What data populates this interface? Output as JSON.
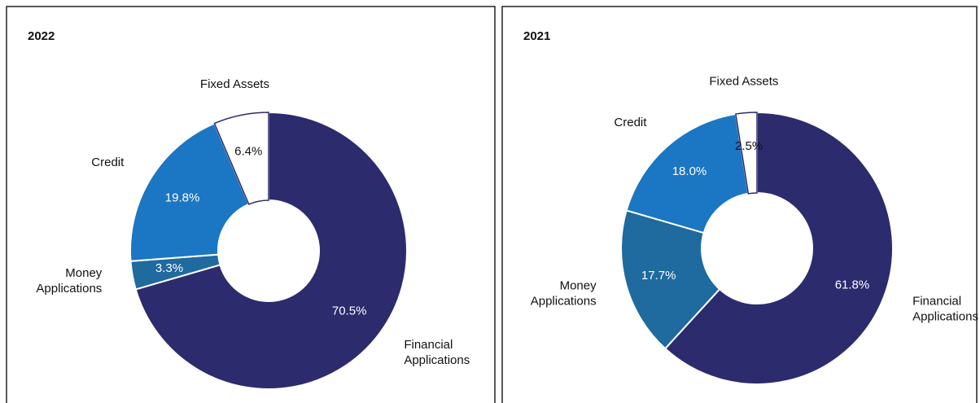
{
  "chart_data": [
    {
      "type": "pie",
      "title": "2022",
      "categories": [
        "Financial Applications",
        "Money Applications",
        "Credit",
        "Fixed Assets"
      ],
      "values": [
        70.5,
        3.3,
        19.8,
        6.4
      ],
      "value_labels": [
        "70.5%",
        "3.3%",
        "19.8%",
        "6.4%"
      ],
      "colors": [
        "#2c2b6e",
        "#1f6a9f",
        "#1b76c3",
        "#ffffff"
      ]
    },
    {
      "type": "pie",
      "title": "2021",
      "categories": [
        "Financial Applications",
        "Money Applications",
        "Credit",
        "Fixed Assets"
      ],
      "values": [
        61.8,
        17.7,
        18.0,
        2.5
      ],
      "value_labels": [
        "61.8%",
        "17.7%",
        "18.0%",
        "2.5%"
      ],
      "colors": [
        "#2c2b6e",
        "#1f6a9f",
        "#1b76c3",
        "#ffffff"
      ]
    }
  ]
}
